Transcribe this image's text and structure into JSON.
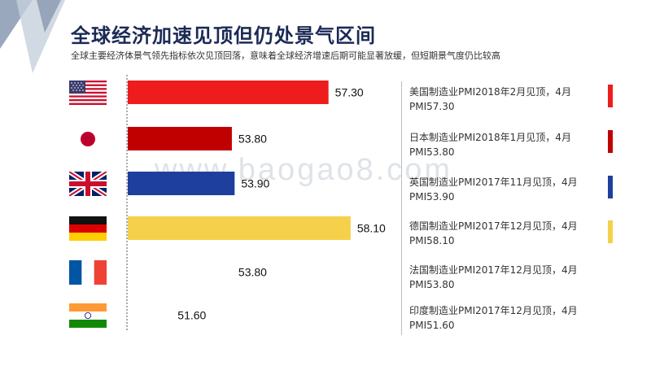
{
  "header": {
    "title": "全球经济加速见顶但仍处景气区间",
    "subtitle": "全球主要经济体景气领先指标依次见顶回落，意味着全球经济增速后期可能显著放缓，但短期景气度仍比较高",
    "watermark": "www.baogao8.com"
  },
  "chart_data": {
    "type": "bar",
    "orientation": "horizontal",
    "categories": [
      "美国",
      "日本",
      "英国",
      "德国",
      "法国",
      "印度"
    ],
    "values": [
      57.3,
      53.8,
      53.9,
      58.1,
      53.8,
      51.6
    ],
    "value_labels": [
      "57.30",
      "53.80",
      "53.90",
      "58.10",
      "53.80",
      "51.60"
    ],
    "bar_visible": [
      true,
      true,
      true,
      true,
      false,
      false
    ],
    "colors": [
      "#ee1c1c",
      "#c00000",
      "#1f3f9e",
      "#f5d04a",
      "#2e5fa8",
      "#e8842a"
    ],
    "title": "",
    "xlabel": "",
    "ylabel": "",
    "xlim": [
      50,
      58.4
    ]
  },
  "flags": [
    "us-flag-icon",
    "japan-flag-icon",
    "uk-flag-icon",
    "germany-flag-icon",
    "france-flag-icon",
    "india-flag-icon"
  ],
  "notes": [
    {
      "line1": "美国制造业PMI2018年2月见顶，4月",
      "line2": "PMI57.30"
    },
    {
      "line1": "日本制造业PMI2018年1月见顶，4月",
      "line2": "PMI53.80"
    },
    {
      "line1": "英国制造业PMI2017年11月见顶，4月",
      "line2": "PMI53.90"
    },
    {
      "line1": "德国制造业PMI2017年12月见顶，4月",
      "line2": "PMI58.10"
    },
    {
      "line1": "法国制造业PMI2017年12月见顶，4月",
      "line2": "PMI53.80"
    },
    {
      "line1": "印度制造业PMI2017年12月见顶，4月",
      "line2": "PMI51.60"
    }
  ],
  "marker_colors": [
    "#ee1c1c",
    "#c00000",
    "#1f3f9e",
    "#f5d04a"
  ]
}
